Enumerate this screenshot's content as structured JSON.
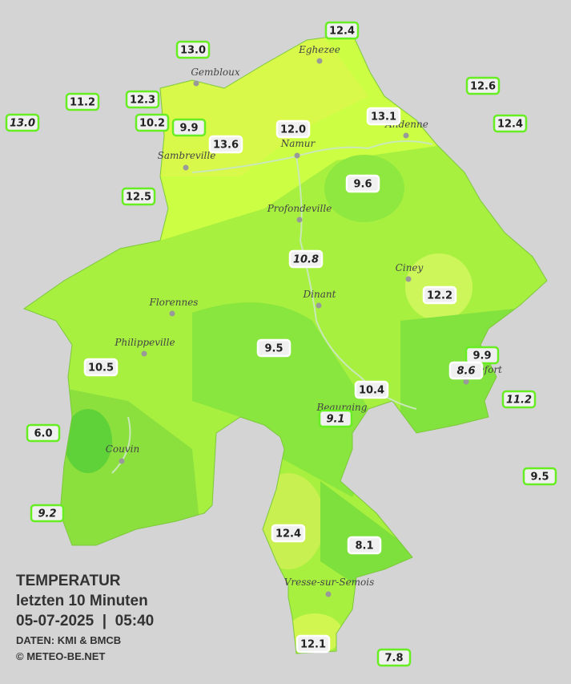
{
  "legend": {
    "title": "TEMPERATUR",
    "subtitle": "letzten 10 Minuten",
    "datetime": "05-07-2025  |  05:40",
    "source": "DATEN: KMI & BMCB",
    "copyright": "© METEO-BE.NET"
  },
  "towns": [
    "Eghezee",
    "Gembloux",
    "Andenne",
    "Namur",
    "Sambreville",
    "Profondeville",
    "Ciney",
    "Dinant",
    "Florennes",
    "Philippeville",
    "Rochefort",
    "Beauraing",
    "Couvin",
    "Vresse-sur-Semois"
  ],
  "stations": [
    "12.4",
    "13.0",
    "11.2",
    "12.3",
    "13.0",
    "10.2",
    "9.9",
    "13.6",
    "12.0",
    "13.1",
    "12.6",
    "12.4",
    "12.5",
    "9.6",
    "10.8",
    "12.2",
    "9.5",
    "10.5",
    "9.9",
    "8.6",
    "10.4",
    "9.1",
    "11.2",
    "6.0",
    "9.5",
    "9.2",
    "12.4",
    "8.1",
    "12.1",
    "7.8"
  ]
}
